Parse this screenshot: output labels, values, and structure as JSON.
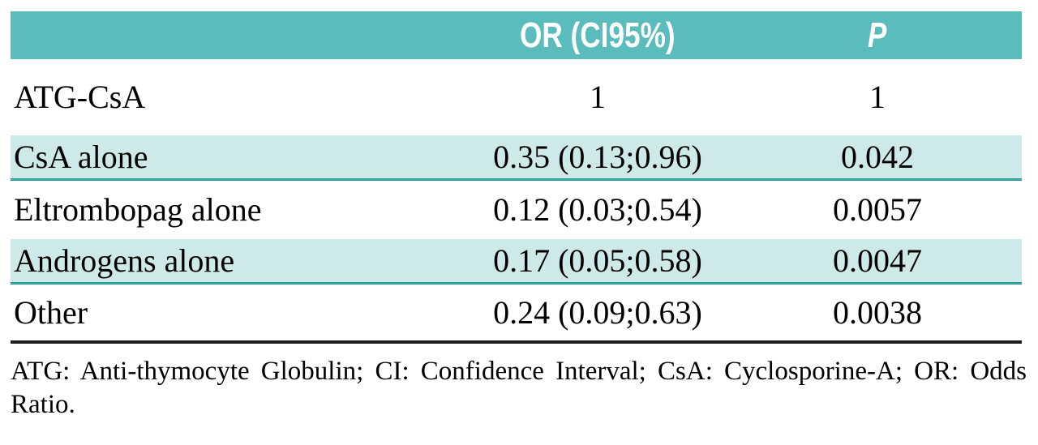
{
  "table": {
    "columns": [
      {
        "label": ""
      },
      {
        "label": "OR (CI95%)"
      },
      {
        "label": "P"
      }
    ],
    "rows": [
      {
        "label": "ATG-CsA",
        "or_ci": "1",
        "p": "1",
        "highlight": false
      },
      {
        "label": "CsA alone",
        "or_ci": "0.35 (0.13;0.96)",
        "p": "0.042",
        "highlight": true
      },
      {
        "label": "Eltrombopag alone",
        "or_ci": "0.12 (0.03;0.54)",
        "p": "0.0057",
        "highlight": false
      },
      {
        "label": "Androgens alone",
        "or_ci": "0.17 (0.05;0.58)",
        "p": "0.0047",
        "highlight": true
      },
      {
        "label": "Other",
        "or_ci": "0.24 (0.09;0.63)",
        "p": "0.0038",
        "highlight": false
      }
    ],
    "footnote": "ATG: Anti-thymocyte Globulin; CI: Confidence Interval; CsA: Cyclosporine-A; OR: Odds Ratio."
  },
  "colors": {
    "header_bg": "#5bbcbd",
    "header_text": "#ffffff",
    "row_highlight_bg": "#cdeae9",
    "row_border_teal": "#2f9fa1",
    "table_bottom_border": "#1e1e1e",
    "body_text": "#000000"
  }
}
